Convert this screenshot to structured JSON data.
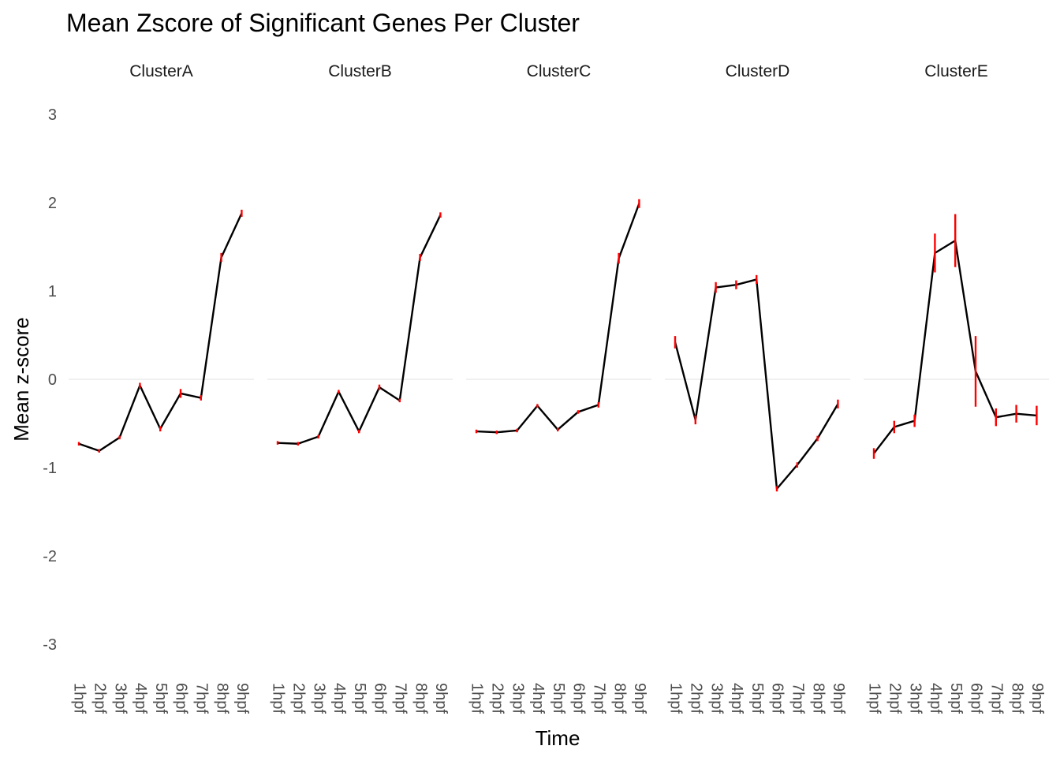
{
  "chart_data": {
    "type": "line",
    "title": "Mean Zscore of Significant Genes Per Cluster",
    "xlabel": "Time",
    "ylabel": "Mean z-score",
    "ylim": [
      -3.3,
      3.3
    ],
    "yticks": [
      -3,
      -2,
      -1,
      0,
      1,
      2,
      3
    ],
    "ytick_labels": [
      "-3",
      "-2",
      "-1",
      "0",
      "1",
      "2",
      "3"
    ],
    "grid": "horizontal line at 0 only",
    "line_color": "#000000",
    "errorbar_color": "#ff0000",
    "categories": [
      "1hpf",
      "2hpf",
      "3hpf",
      "4hpf",
      "5hpf",
      "6hpf",
      "7hpf",
      "8hpf",
      "9hpf"
    ],
    "panels": [
      {
        "name": "ClusterA",
        "values": [
          -0.73,
          -0.81,
          -0.66,
          -0.07,
          -0.56,
          -0.16,
          -0.21,
          1.38,
          1.88
        ],
        "errors": [
          0.02,
          0.02,
          0.02,
          0.03,
          0.03,
          0.05,
          0.03,
          0.05,
          0.04
        ]
      },
      {
        "name": "ClusterB",
        "values": [
          -0.72,
          -0.73,
          -0.65,
          -0.14,
          -0.59,
          -0.09,
          -0.24,
          1.38,
          1.86
        ],
        "errors": [
          0.02,
          0.02,
          0.02,
          0.02,
          0.02,
          0.03,
          0.02,
          0.04,
          0.03
        ]
      },
      {
        "name": "ClusterC",
        "values": [
          -0.59,
          -0.6,
          -0.58,
          -0.3,
          -0.57,
          -0.37,
          -0.29,
          1.37,
          1.99
        ],
        "errors": [
          0.02,
          0.02,
          0.02,
          0.02,
          0.02,
          0.02,
          0.03,
          0.06,
          0.05
        ]
      },
      {
        "name": "ClusterD",
        "values": [
          0.42,
          -0.46,
          1.04,
          1.07,
          1.13,
          -1.24,
          -0.97,
          -0.67,
          -0.28
        ],
        "errors": [
          0.07,
          0.05,
          0.06,
          0.05,
          0.05,
          0.03,
          0.03,
          0.03,
          0.05
        ]
      },
      {
        "name": "ClusterE",
        "values": [
          -0.84,
          -0.54,
          -0.47,
          1.43,
          1.57,
          0.09,
          -0.43,
          -0.39,
          -0.41
        ],
        "errors": [
          0.06,
          0.07,
          0.07,
          0.22,
          0.3,
          0.4,
          0.1,
          0.1,
          0.11
        ]
      }
    ]
  }
}
